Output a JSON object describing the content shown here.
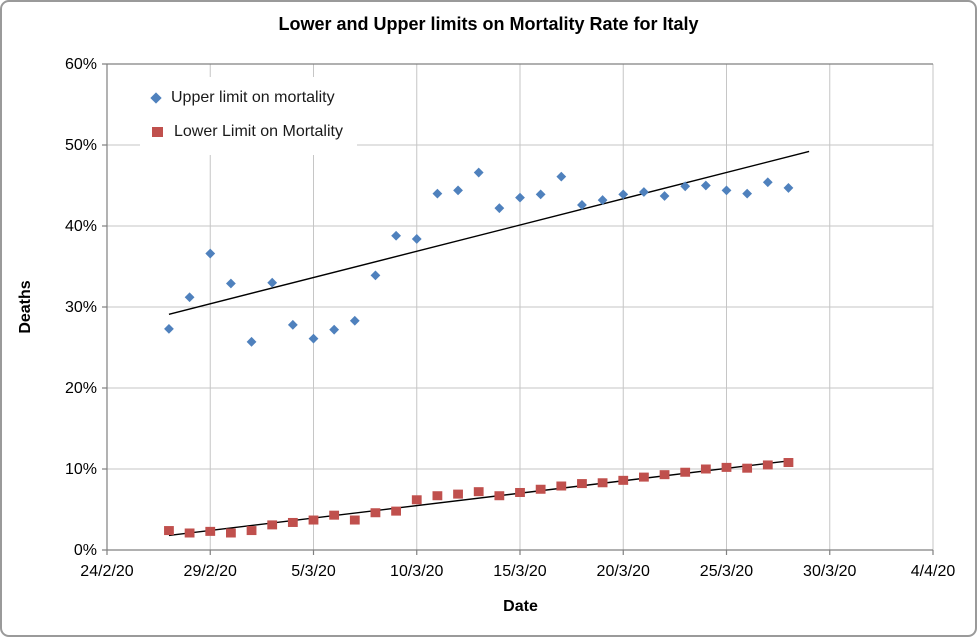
{
  "chart_data": {
    "type": "scatter",
    "title": "Lower and Upper limits on Mortality Rate for Italy",
    "xlabel": "Date",
    "ylabel": "Deaths",
    "grid": true,
    "legend_position": "top-left-inside",
    "x_axis": {
      "tick_labels": [
        "24/2/20",
        "29/2/20",
        "5/3/20",
        "10/3/20",
        "15/3/20",
        "20/3/20",
        "25/3/20",
        "30/3/20",
        "4/4/20"
      ],
      "range_days": [
        0,
        40
      ],
      "tick_step_days": 5
    },
    "y_axis": {
      "tick_labels": [
        "0%",
        "10%",
        "20%",
        "30%",
        "40%",
        "50%",
        "60%"
      ],
      "ylim": [
        0,
        60
      ],
      "tick_step": 10,
      "unit": "percent"
    },
    "point_dates": [
      "27/2/20",
      "28/2/20",
      "29/2/20",
      "1/3/20",
      "2/3/20",
      "3/3/20",
      "4/3/20",
      "5/3/20",
      "6/3/20",
      "7/3/20",
      "8/3/20",
      "9/3/20",
      "10/3/20",
      "11/3/20",
      "12/3/20",
      "13/3/20",
      "14/3/20",
      "15/3/20",
      "16/3/20",
      "17/3/20",
      "18/3/20",
      "19/3/20",
      "20/3/20",
      "21/3/20",
      "22/3/20",
      "23/3/20",
      "24/3/20",
      "25/3/20",
      "26/3/20",
      "27/3/20",
      "28/3/20"
    ],
    "point_day_indices_from_24_2": [
      3,
      4,
      5,
      6,
      7,
      8,
      9,
      10,
      11,
      12,
      13,
      14,
      15,
      16,
      17,
      18,
      19,
      20,
      21,
      22,
      23,
      24,
      25,
      26,
      27,
      28,
      29,
      30,
      31,
      32,
      33
    ],
    "series": [
      {
        "name": "Upper limit on mortality",
        "marker": "diamond",
        "color": "#4F81BD",
        "values": [
          27.3,
          31.2,
          36.6,
          32.9,
          25.7,
          33.0,
          27.8,
          26.1,
          27.2,
          28.3,
          33.9,
          38.8,
          38.4,
          44.0,
          44.4,
          46.6,
          42.2,
          43.5,
          43.9,
          46.1,
          42.6,
          43.2,
          43.9,
          44.2,
          43.7,
          44.9,
          45.0,
          44.4,
          44.0,
          45.4,
          44.7
        ]
      },
      {
        "name": "Lower Limit on Mortality",
        "marker": "square",
        "color": "#C0504D",
        "values": [
          2.4,
          2.1,
          2.3,
          2.1,
          2.4,
          3.1,
          3.4,
          3.7,
          4.3,
          3.7,
          4.6,
          4.8,
          6.2,
          6.7,
          6.9,
          7.2,
          6.7,
          7.1,
          7.5,
          7.9,
          8.2,
          8.3,
          8.6,
          9.0,
          9.3,
          9.6,
          10.0,
          10.2,
          10.1,
          10.5,
          10.8
        ]
      }
    ],
    "trendlines": [
      {
        "series": "Upper limit on mortality",
        "color": "#000000",
        "start_day": 3,
        "start_value": 29.1,
        "end_day": 34,
        "end_value": 49.2
      },
      {
        "series": "Lower Limit on Mortality",
        "color": "#000000",
        "start_day": 3,
        "start_value": 1.8,
        "end_day": 33,
        "end_value": 11.0
      }
    ],
    "colors": {
      "gridline": "#C6C6C6",
      "axis": "#808080",
      "tick_text": "#000000",
      "background": "#FFFFFF"
    }
  }
}
